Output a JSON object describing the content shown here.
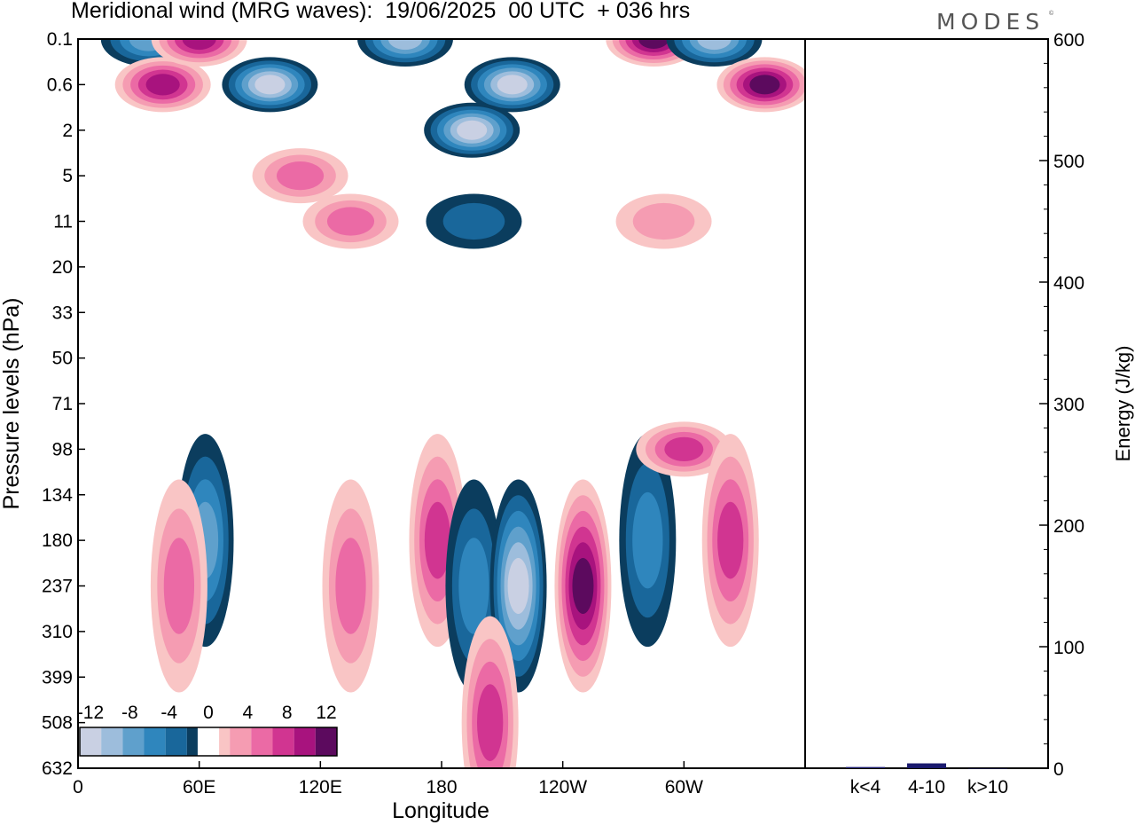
{
  "header": {
    "title": "Meridional wind (MRG waves):  19/06/2025  00 UTC  + 036 hrs",
    "brand": "MODES"
  },
  "colors": {
    "negative": [
      "#0b3d5e",
      "#19679b",
      "#2f86bd",
      "#5fa0cc",
      "#9dbddc",
      "#c9d0e3"
    ],
    "zero": "#ffffff",
    "positive": [
      "#f9c5c5",
      "#f59cb2",
      "#eb6aa5",
      "#d13591",
      "#a8137e",
      "#5c0a5e"
    ]
  },
  "chart_data": [
    {
      "type": "heatmap",
      "title": "Meridional wind (MRG waves):  19/06/2025  00 UTC  + 036 hrs",
      "xlabel": "Longitude",
      "ylabel": "Pressure levels (hPa)",
      "x_ticks": [
        "0",
        "60E",
        "120E",
        "180",
        "120W",
        "60W"
      ],
      "y_ticks": [
        "0.1",
        "0.6",
        "2",
        "5",
        "11",
        "20",
        "33",
        "50",
        "71",
        "98",
        "134",
        "180",
        "237",
        "310",
        "399",
        "508",
        "632"
      ],
      "colorbar": {
        "levels": [
          -12,
          -10,
          -8,
          -6,
          -4,
          -2,
          0,
          2,
          4,
          6,
          8,
          10,
          12
        ],
        "labels": [
          "-12",
          "-8",
          "-4",
          "0",
          "4",
          "8",
          "12"
        ]
      },
      "features": [
        {
          "name": "neg-cell",
          "lon": 35,
          "level": "0.1",
          "value": -8
        },
        {
          "name": "pos-cell",
          "lon": 42,
          "level": "0.6",
          "value": 10
        },
        {
          "name": "pos-cell",
          "lon": 60,
          "level": "0.1",
          "value": 10
        },
        {
          "name": "neg-cell",
          "lon": 95,
          "level": "0.6",
          "value": -12
        },
        {
          "name": "pos-cell",
          "lon": 110,
          "level": "5",
          "value": 6
        },
        {
          "name": "pos-cell",
          "lon": 135,
          "level": "11",
          "value": 6
        },
        {
          "name": "neg-cell",
          "lon": 162,
          "level": "0.1",
          "value": -10
        },
        {
          "name": "neg-cell",
          "lon": 215,
          "level": "0.6",
          "value": -13
        },
        {
          "name": "neg-cell",
          "lon": 195,
          "level": "2",
          "value": -12
        },
        {
          "name": "pos-cell",
          "lon": 285,
          "level": "0.1",
          "value": 13
        },
        {
          "name": "neg-cell",
          "lon": 315,
          "level": "0.1",
          "value": -10
        },
        {
          "name": "pos-cell",
          "lon": 340,
          "level": "0.6",
          "value": 13
        },
        {
          "name": "pos-cell",
          "lon": 290,
          "level": "11",
          "value": 4
        },
        {
          "name": "neg-cell",
          "lon": 196,
          "level": "11",
          "value": -4
        },
        {
          "name": "neg-cell",
          "lon": 63,
          "level": "180",
          "value": -8
        },
        {
          "name": "pos-cell",
          "lon": 50,
          "level": "237",
          "value": 6
        },
        {
          "name": "pos-cell",
          "lon": 135,
          "level": "237",
          "value": 6
        },
        {
          "name": "pos-cell",
          "lon": 178,
          "level": "180",
          "value": 8
        },
        {
          "name": "neg-cell",
          "lon": 196,
          "level": "237",
          "value": -5
        },
        {
          "name": "neg-cell",
          "lon": 218,
          "level": "237",
          "value": -13
        },
        {
          "name": "pos-cell",
          "lon": 250,
          "level": "237",
          "value": 13
        },
        {
          "name": "neg-cell",
          "lon": 282,
          "level": "180",
          "value": -6
        },
        {
          "name": "pos-cell",
          "lon": 300,
          "level": "98",
          "value": 8
        },
        {
          "name": "pos-cell",
          "lon": 323,
          "level": "180",
          "value": 8
        },
        {
          "name": "pos-cell",
          "lon": 204,
          "level": "508",
          "value": 8
        }
      ]
    },
    {
      "type": "bar",
      "categories": [
        "k<4",
        "4-10",
        "k>10"
      ],
      "values": [
        1,
        4,
        0
      ],
      "ylabel": "Energy (J/kg)",
      "ylim": [
        0,
        600
      ],
      "y_ticks": [
        "0",
        "100",
        "200",
        "300",
        "400",
        "500",
        "600"
      ],
      "bar_color": "#1a1a6e"
    }
  ]
}
